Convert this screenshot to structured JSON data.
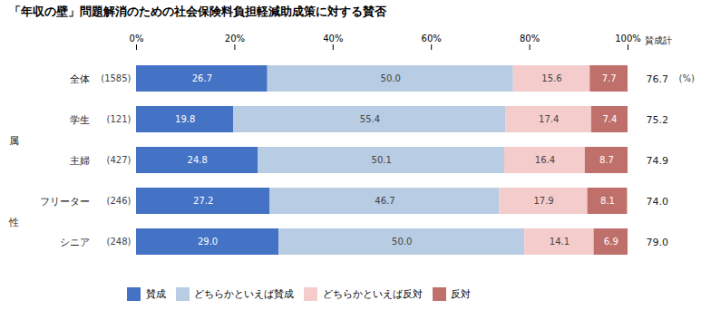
{
  "chart_data": {
    "type": "bar",
    "orientation": "horizontal",
    "stacked": true,
    "data_labels": true,
    "grid": false,
    "title": "「年収の壁」問題解消のための社会保険料負担軽減助成策に対する賛否",
    "categories": [
      "全体",
      "学生",
      "主婦",
      "フリーター",
      "シニア"
    ],
    "row_counts": [
      "(1585)",
      "(121)",
      "(427)",
      "(246)",
      "(248)"
    ],
    "groups": [
      {
        "label": "属性",
        "categories": [
          "学生",
          "主婦",
          "フリーター",
          "シニア"
        ]
      }
    ],
    "series": [
      {
        "name": "賛成",
        "color": "#4472c4",
        "values": [
          26.7,
          19.8,
          24.8,
          27.2,
          29.0
        ],
        "value_labels": [
          "26.7",
          "19.8",
          "24.8",
          "27.2",
          "29.0"
        ]
      },
      {
        "name": "どちらかといえば賛成",
        "color": "#b8cce4",
        "values": [
          50.0,
          55.4,
          50.1,
          46.7,
          50.0
        ],
        "value_labels": [
          "50.0",
          "55.4",
          "50.1",
          "46.7",
          "50.0"
        ]
      },
      {
        "name": "どちらかといえば反対",
        "color": "#f4cccc",
        "values": [
          15.6,
          17.4,
          16.4,
          17.9,
          14.1
        ],
        "value_labels": [
          "15.6",
          "17.4",
          "16.4",
          "17.9",
          "14.1"
        ]
      },
      {
        "name": "反対",
        "color": "#c0706a",
        "values": [
          7.7,
          7.4,
          8.7,
          8.1,
          6.9
        ],
        "value_labels": [
          "7.7",
          "7.4",
          "8.7",
          "8.1",
          "6.9"
        ]
      }
    ],
    "totals": {
      "label": "賛成計",
      "values": [
        76.7,
        75.2,
        74.9,
        74.0,
        79.0
      ],
      "value_labels": [
        "76.7",
        "75.2",
        "74.9",
        "74.0",
        "79.0"
      ],
      "unit_label": "(%)"
    },
    "xlim": [
      0,
      100
    ],
    "xticks": [
      {
        "value": 0,
        "label": "0%"
      },
      {
        "value": 20,
        "label": "20%"
      },
      {
        "value": 40,
        "label": "40%"
      },
      {
        "value": 60,
        "label": "60%"
      },
      {
        "value": 80,
        "label": "80%"
      },
      {
        "value": 100,
        "label": "100%"
      }
    ]
  }
}
